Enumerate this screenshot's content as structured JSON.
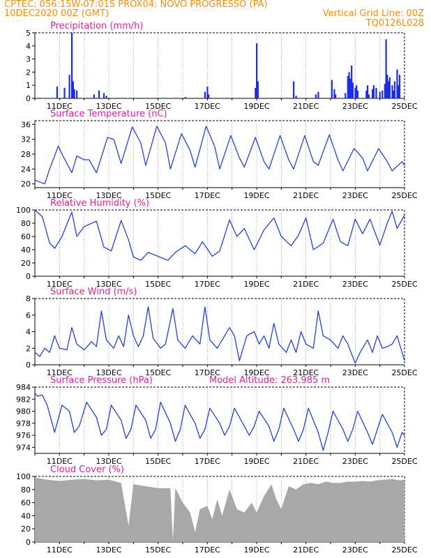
{
  "header": {
    "line1_left": "CPTEC:   056:15W-07:01S   PROX04: NOVO PROGRESSO (PA)",
    "line2_left": "10DEC2020 00Z (GMT)",
    "line2_right": "Vertical Grid Line: 00Z",
    "line3_right": "TQ0126L028"
  },
  "x_ticks": [
    "11DEC",
    "13DEC",
    "15DEC",
    "17DEC",
    "19DEC",
    "21DEC",
    "23DEC",
    "25DEC"
  ],
  "colors": {
    "line": "#2040e0",
    "title": "#e0209a",
    "bar": "#1a2ee8",
    "cloud": "#a8a8a8",
    "header": "#ff8c00"
  },
  "chart_data": [
    {
      "type": "bar",
      "title": "Precipitation (mm/h)",
      "x_range_days": [
        10,
        25
      ],
      "ylim": [
        0,
        5
      ],
      "yticks": [
        "0",
        "1",
        "2",
        "3",
        "4",
        "5"
      ],
      "points": [
        [
          10.9,
          0.9
        ],
        [
          11.2,
          0.8
        ],
        [
          11.4,
          1.8
        ],
        [
          11.5,
          5.0
        ],
        [
          11.55,
          1.3
        ],
        [
          11.6,
          0.7
        ],
        [
          11.7,
          0.6
        ],
        [
          12.4,
          0.3
        ],
        [
          12.6,
          0.6
        ],
        [
          12.8,
          0.4
        ],
        [
          12.9,
          0.2
        ],
        [
          16.1,
          0.1
        ],
        [
          16.9,
          0.5
        ],
        [
          17.0,
          0.9
        ],
        [
          17.05,
          0.3
        ],
        [
          18.95,
          0.8
        ],
        [
          19.0,
          4.2
        ],
        [
          19.05,
          1.3
        ],
        [
          20.5,
          1.3
        ],
        [
          20.6,
          0.2
        ],
        [
          21.4,
          0.3
        ],
        [
          21.5,
          0.5
        ],
        [
          22.05,
          1.4
        ],
        [
          22.15,
          0.7
        ],
        [
          22.2,
          0.3
        ],
        [
          22.6,
          0.4
        ],
        [
          22.7,
          1.7
        ],
        [
          22.75,
          2.0
        ],
        [
          22.8,
          1.5
        ],
        [
          22.85,
          2.5
        ],
        [
          22.9,
          1.2
        ],
        [
          23.0,
          0.8
        ],
        [
          23.05,
          1.0
        ],
        [
          23.1,
          0.6
        ],
        [
          23.45,
          0.6
        ],
        [
          23.5,
          1.0
        ],
        [
          23.55,
          0.3
        ],
        [
          23.7,
          0.7
        ],
        [
          23.75,
          1.0
        ],
        [
          23.85,
          0.8
        ],
        [
          24.0,
          0.5
        ],
        [
          24.1,
          0.6
        ],
        [
          24.2,
          1.1
        ],
        [
          24.25,
          4.5
        ],
        [
          24.3,
          1.8
        ],
        [
          24.35,
          1.3
        ],
        [
          24.4,
          1.6
        ],
        [
          24.5,
          1.0
        ],
        [
          24.55,
          0.6
        ],
        [
          24.6,
          1.3
        ],
        [
          24.7,
          2.2
        ],
        [
          24.75,
          1.0
        ],
        [
          24.8,
          1.8
        ]
      ]
    },
    {
      "type": "line",
      "title": "Surface Temperature (nC)",
      "x_range_days": [
        10,
        25
      ],
      "ylim": [
        19,
        37
      ],
      "yticks": [
        "20",
        "24",
        "28",
        "32",
        "36"
      ],
      "points": [
        [
          10,
          21
        ],
        [
          10.4,
          20
        ],
        [
          10.6,
          24
        ],
        [
          10.95,
          30.2
        ],
        [
          11.1,
          28
        ],
        [
          11.5,
          23
        ],
        [
          11.7,
          27.5
        ],
        [
          12.0,
          26.5
        ],
        [
          12.2,
          26.5
        ],
        [
          12.5,
          23
        ],
        [
          12.95,
          32.5
        ],
        [
          13.2,
          32
        ],
        [
          13.5,
          25.5
        ],
        [
          13.95,
          35.3
        ],
        [
          14.3,
          31
        ],
        [
          14.5,
          25
        ],
        [
          14.95,
          35.5
        ],
        [
          15.3,
          31
        ],
        [
          15.5,
          24
        ],
        [
          15.95,
          33.5
        ],
        [
          16.3,
          29
        ],
        [
          16.5,
          24.5
        ],
        [
          16.95,
          35.5
        ],
        [
          17.3,
          30
        ],
        [
          17.5,
          24
        ],
        [
          17.95,
          33
        ],
        [
          18.3,
          27
        ],
        [
          18.5,
          24.5
        ],
        [
          18.95,
          32.5
        ],
        [
          19.3,
          26
        ],
        [
          19.5,
          24
        ],
        [
          19.95,
          33
        ],
        [
          20.3,
          26.5
        ],
        [
          20.5,
          24
        ],
        [
          20.95,
          33
        ],
        [
          21.3,
          26
        ],
        [
          21.5,
          25
        ],
        [
          21.95,
          33.2
        ],
        [
          22.3,
          26.5
        ],
        [
          22.5,
          23.5
        ],
        [
          22.95,
          29.5
        ],
        [
          23.3,
          27
        ],
        [
          23.5,
          23.5
        ],
        [
          23.95,
          29.5
        ],
        [
          24.3,
          26
        ],
        [
          24.5,
          23.5
        ],
        [
          24.9,
          26
        ],
        [
          25,
          25
        ]
      ]
    },
    {
      "type": "line",
      "title": "Relative Humidity (%)",
      "x_range_days": [
        10,
        25
      ],
      "ylim": [
        0,
        100
      ],
      "yticks": [
        "0",
        "20",
        "40",
        "60",
        "80",
        "100"
      ],
      "points": [
        [
          10,
          100
        ],
        [
          10.3,
          90
        ],
        [
          10.6,
          50
        ],
        [
          10.8,
          42
        ],
        [
          11.1,
          60
        ],
        [
          11.5,
          97
        ],
        [
          11.7,
          60
        ],
        [
          12.0,
          75
        ],
        [
          12.5,
          83
        ],
        [
          12.8,
          44
        ],
        [
          13.1,
          38
        ],
        [
          13.5,
          84
        ],
        [
          13.8,
          55
        ],
        [
          14.0,
          29
        ],
        [
          14.3,
          24
        ],
        [
          14.6,
          36
        ],
        [
          15.0,
          30
        ],
        [
          15.4,
          24
        ],
        [
          15.7,
          36
        ],
        [
          16.1,
          46
        ],
        [
          16.5,
          34
        ],
        [
          16.8,
          52
        ],
        [
          17.2,
          30
        ],
        [
          17.5,
          38
        ],
        [
          17.9,
          85
        ],
        [
          18.2,
          60
        ],
        [
          18.5,
          72
        ],
        [
          18.9,
          40
        ],
        [
          19.3,
          70
        ],
        [
          19.7,
          88
        ],
        [
          20.0,
          60
        ],
        [
          20.4,
          46
        ],
        [
          20.7,
          62
        ],
        [
          21.0,
          88
        ],
        [
          21.3,
          40
        ],
        [
          21.7,
          50
        ],
        [
          22.1,
          86
        ],
        [
          22.4,
          52
        ],
        [
          22.7,
          46
        ],
        [
          23.0,
          86
        ],
        [
          23.3,
          64
        ],
        [
          23.6,
          86
        ],
        [
          24.0,
          47
        ],
        [
          24.3,
          80
        ],
        [
          24.5,
          98
        ],
        [
          24.7,
          72
        ],
        [
          25.0,
          92
        ]
      ]
    },
    {
      "type": "line",
      "title": "Surface Wind (m/s)",
      "x_range_days": [
        10,
        25
      ],
      "ylim": [
        0,
        8
      ],
      "yticks": [
        "0",
        "2",
        "4",
        "6",
        "8"
      ],
      "points": [
        [
          10,
          1.5
        ],
        [
          10.2,
          1.0
        ],
        [
          10.4,
          2.0
        ],
        [
          10.6,
          1.5
        ],
        [
          10.8,
          3.5
        ],
        [
          11.0,
          2.0
        ],
        [
          11.3,
          1.8
        ],
        [
          11.5,
          4.5
        ],
        [
          11.7,
          2.5
        ],
        [
          12.0,
          1.8
        ],
        [
          12.3,
          2.8
        ],
        [
          12.5,
          2.2
        ],
        [
          12.7,
          6.5
        ],
        [
          12.9,
          3.0
        ],
        [
          13.2,
          2.0
        ],
        [
          13.4,
          3.5
        ],
        [
          13.6,
          2.2
        ],
        [
          13.8,
          6.0
        ],
        [
          14.0,
          3.5
        ],
        [
          14.2,
          2.2
        ],
        [
          14.4,
          3.5
        ],
        [
          14.6,
          7.0
        ],
        [
          14.8,
          3.2
        ],
        [
          15.1,
          2.0
        ],
        [
          15.3,
          2.5
        ],
        [
          15.6,
          6.8
        ],
        [
          15.8,
          3.0
        ],
        [
          16.1,
          2.0
        ],
        [
          16.4,
          3.5
        ],
        [
          16.7,
          2.5
        ],
        [
          16.9,
          7.0
        ],
        [
          17.1,
          3.0
        ],
        [
          17.4,
          2.0
        ],
        [
          17.6,
          3.0
        ],
        [
          17.9,
          4.5
        ],
        [
          18.1,
          3.5
        ],
        [
          18.3,
          0.5
        ],
        [
          18.6,
          3.5
        ],
        [
          18.9,
          4.0
        ],
        [
          19.1,
          2.5
        ],
        [
          19.3,
          3.5
        ],
        [
          19.5,
          2.0
        ],
        [
          19.7,
          5.0
        ],
        [
          19.9,
          2.5
        ],
        [
          20.2,
          1.5
        ],
        [
          20.4,
          3.0
        ],
        [
          20.6,
          1.5
        ],
        [
          20.8,
          4.0
        ],
        [
          21.0,
          2.5
        ],
        [
          21.3,
          2.0
        ],
        [
          21.5,
          6.5
        ],
        [
          21.7,
          3.5
        ],
        [
          22.0,
          3.0
        ],
        [
          22.3,
          2.0
        ],
        [
          22.5,
          3.5
        ],
        [
          22.7,
          2.5
        ],
        [
          23.0,
          0.2
        ],
        [
          23.2,
          1.5
        ],
        [
          23.5,
          3.0
        ],
        [
          23.7,
          1.5
        ],
        [
          23.9,
          3.5
        ],
        [
          24.1,
          2.0
        ],
        [
          24.3,
          2.2
        ],
        [
          24.5,
          2.5
        ],
        [
          24.7,
          3.5
        ],
        [
          25.0,
          0.5
        ]
      ]
    },
    {
      "type": "line",
      "title": "Surface Pressure (hPa)",
      "subtitle": "Model Altitude: 263.985 m",
      "x_range_days": [
        10,
        25
      ],
      "ylim": [
        973,
        984
      ],
      "yticks": [
        "974",
        "976",
        "978",
        "980",
        "982",
        "984"
      ],
      "points": [
        [
          10,
          983
        ],
        [
          10.1,
          982.5
        ],
        [
          10.3,
          982.7
        ],
        [
          10.5,
          981
        ],
        [
          10.8,
          976.5
        ],
        [
          11.1,
          981
        ],
        [
          11.4,
          980
        ],
        [
          11.6,
          976.5
        ],
        [
          11.8,
          977.5
        ],
        [
          12.1,
          981.5
        ],
        [
          12.5,
          979
        ],
        [
          12.7,
          976
        ],
        [
          12.9,
          977
        ],
        [
          13.1,
          981
        ],
        [
          13.5,
          978.5
        ],
        [
          13.7,
          975.5
        ],
        [
          13.9,
          977
        ],
        [
          14.1,
          981
        ],
        [
          14.5,
          978.5
        ],
        [
          14.7,
          975.5
        ],
        [
          14.9,
          977
        ],
        [
          15.1,
          981.5
        ],
        [
          15.5,
          978
        ],
        [
          15.7,
          975
        ],
        [
          15.9,
          977
        ],
        [
          16.1,
          981
        ],
        [
          16.5,
          978
        ],
        [
          16.7,
          975.5
        ],
        [
          16.9,
          977
        ],
        [
          17.1,
          980.5
        ],
        [
          17.5,
          978
        ],
        [
          17.7,
          976
        ],
        [
          17.9,
          977.5
        ],
        [
          18.1,
          980.5
        ],
        [
          18.5,
          977.5
        ],
        [
          18.7,
          976
        ],
        [
          18.9,
          977.5
        ],
        [
          19.1,
          980
        ],
        [
          19.5,
          977.5
        ],
        [
          19.7,
          975
        ],
        [
          19.9,
          977
        ],
        [
          20.1,
          980.5
        ],
        [
          20.5,
          977
        ],
        [
          20.7,
          975
        ],
        [
          20.9,
          977
        ],
        [
          21.1,
          980.5
        ],
        [
          21.5,
          976.5
        ],
        [
          21.7,
          973.5
        ],
        [
          21.9,
          976.5
        ],
        [
          22.1,
          980
        ],
        [
          22.5,
          977
        ],
        [
          22.7,
          975
        ],
        [
          22.9,
          977
        ],
        [
          23.1,
          980
        ],
        [
          23.5,
          976.5
        ],
        [
          23.7,
          974.5
        ],
        [
          23.9,
          977
        ],
        [
          24.1,
          979.5
        ],
        [
          24.5,
          976.5
        ],
        [
          24.7,
          974
        ],
        [
          24.9,
          976.5
        ],
        [
          25,
          976
        ]
      ]
    },
    {
      "type": "area",
      "title": "Cloud Cover (%)",
      "x_range_days": [
        10,
        25
      ],
      "ylim": [
        0,
        100
      ],
      "yticks": [
        "0",
        "20",
        "40",
        "60",
        "80",
        "100"
      ],
      "points": [
        [
          10,
          98
        ],
        [
          10.5,
          95
        ],
        [
          11,
          93
        ],
        [
          11.5,
          95
        ],
        [
          12,
          96
        ],
        [
          12.5,
          94
        ],
        [
          13,
          95
        ],
        [
          13.5,
          90
        ],
        [
          13.8,
          25
        ],
        [
          14,
          88
        ],
        [
          14.5,
          85
        ],
        [
          15,
          82
        ],
        [
          15.5,
          82
        ],
        [
          15.6,
          2
        ],
        [
          15.7,
          82
        ],
        [
          16,
          60
        ],
        [
          16.3,
          45
        ],
        [
          16.5,
          15
        ],
        [
          16.7,
          50
        ],
        [
          17,
          55
        ],
        [
          17.2,
          35
        ],
        [
          17.4,
          65
        ],
        [
          17.6,
          40
        ],
        [
          17.9,
          80
        ],
        [
          18.2,
          50
        ],
        [
          18.5,
          45
        ],
        [
          18.8,
          60
        ],
        [
          19.0,
          45
        ],
        [
          19.3,
          70
        ],
        [
          19.6,
          88
        ],
        [
          19.8,
          65
        ],
        [
          20.0,
          50
        ],
        [
          20.3,
          85
        ],
        [
          20.6,
          80
        ],
        [
          20.9,
          88
        ],
        [
          21.2,
          90
        ],
        [
          21.5,
          88
        ],
        [
          21.8,
          92
        ],
        [
          22.1,
          90
        ],
        [
          22.4,
          90
        ],
        [
          22.7,
          92
        ],
        [
          23.0,
          92
        ],
        [
          23.3,
          93
        ],
        [
          23.6,
          92
        ],
        [
          23.9,
          94
        ],
        [
          24.2,
          95
        ],
        [
          24.5,
          96
        ],
        [
          24.8,
          94
        ],
        [
          25,
          95
        ]
      ]
    }
  ]
}
